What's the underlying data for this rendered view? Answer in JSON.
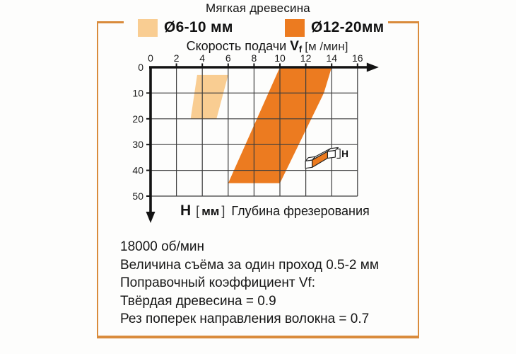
{
  "title": "Мягкая древесина",
  "legend": {
    "items": [
      {
        "label": "Ø6-10 мм",
        "color": "#f9cd92"
      },
      {
        "label": "Ø12-20мм",
        "color": "#ec7b20"
      }
    ]
  },
  "x_axis_title": {
    "prefix": "Скорость подачи",
    "symbol": "V",
    "symbol_sub": "f",
    "unit": "[м /мин]"
  },
  "y_axis_title": {
    "symbol": "H",
    "bracket_open": "[",
    "unit": "мм",
    "bracket_close": "]",
    "label": "Глубина фрезерования"
  },
  "icon_label": "H",
  "notes": [
    "18000 об/мин",
    "Величина съёма за один проход 0.5-2 мм",
    "Поправочный коэффициент Vf:",
    "Твёрдая древесина = 0.9",
    "Рез поперек направления волокна = 0.7"
  ],
  "colors": {
    "frame": "#d98b3c",
    "grid": "#3d3d3d",
    "axis": "#131313",
    "tick_text": "#1b1b1b"
  },
  "chart_data": {
    "type": "area",
    "title": "Мягкая древесина",
    "xlabel": "Скорость подачи Vf [м/мин]",
    "ylabel": "H [мм] Глубина фрезерования",
    "xlim": [
      0,
      16
    ],
    "ylim": [
      0,
      50
    ],
    "y_inverted": true,
    "grid": true,
    "x_ticks": [
      0,
      2,
      4,
      6,
      8,
      10,
      12,
      14,
      16
    ],
    "y_ticks": [
      0,
      10,
      20,
      30,
      40,
      50
    ],
    "x_grid_step": 2,
    "y_grid_step": 10,
    "series": [
      {
        "name": "Ø6-10 мм",
        "color": "#f9cd92",
        "polygon": [
          [
            3.6,
            3
          ],
          [
            6.0,
            3
          ],
          [
            5.1,
            20
          ],
          [
            3.1,
            20
          ]
        ]
      },
      {
        "name": "Ø12-20 мм",
        "color": "#ec7b20",
        "polygon": [
          [
            10,
            0
          ],
          [
            14,
            0
          ],
          [
            13.4,
            10
          ],
          [
            10,
            45
          ],
          [
            6,
            45
          ]
        ]
      }
    ]
  }
}
